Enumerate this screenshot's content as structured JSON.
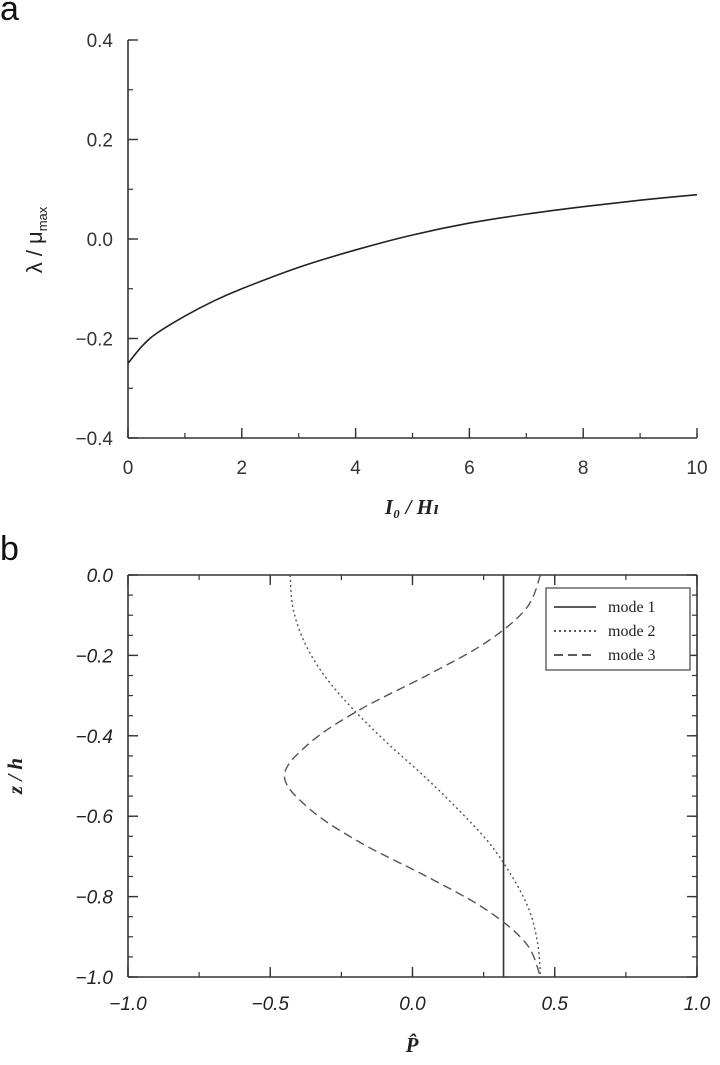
{
  "chart_data": [
    {
      "type": "line",
      "panel_label": "a",
      "xlabel": "I₀ / Hₗ",
      "ylabel": "λ / μ",
      "ylabel_subscript": "max",
      "xlim": [
        0,
        10
      ],
      "ylim": [
        -0.4,
        0.4
      ],
      "x_ticks": [
        0,
        2,
        4,
        6,
        8,
        10
      ],
      "x_tick_labels": [
        "0",
        "2",
        "4",
        "6",
        "8",
        "10"
      ],
      "y_ticks": [
        -0.4,
        -0.2,
        0.0,
        0.2,
        0.4
      ],
      "y_tick_labels": [
        "−0.4",
        "−0.2",
        "0.0",
        "0.2",
        "0.4"
      ],
      "grid": false,
      "series": [
        {
          "color": "#222222",
          "dash": "solid",
          "x": [
            0,
            0.25,
            0.5,
            1,
            1.5,
            2,
            3,
            4,
            5,
            6,
            7,
            8,
            9,
            10
          ],
          "y": [
            -0.25,
            -0.215,
            -0.19,
            -0.155,
            -0.125,
            -0.1,
            -0.057,
            -0.022,
            0.008,
            0.032,
            0.05,
            0.065,
            0.078,
            0.089
          ]
        }
      ]
    },
    {
      "type": "line",
      "panel_label": "b",
      "xlabel": "P̂",
      "ylabel": "z / h",
      "xlim": [
        -1.0,
        1.0
      ],
      "ylim": [
        -1.0,
        0.0
      ],
      "x_ticks": [
        -1.0,
        -0.5,
        0.0,
        0.5,
        1.0
      ],
      "x_tick_labels": [
        "−1.0",
        "−0.5",
        "0.0",
        "0.5",
        "1.0"
      ],
      "y_ticks": [
        0.0,
        -0.2,
        -0.4,
        -0.6,
        -0.8,
        -1.0
      ],
      "y_tick_labels": [
        "0.0",
        "−0.2",
        "−0.4",
        "−0.6",
        "−0.8",
        "−1.0"
      ],
      "grid": false,
      "legend_position": "top-right",
      "series": [
        {
          "name": "mode 1",
          "color": "#333333",
          "dash": "solid",
          "x": [
            0.32,
            0.32
          ],
          "y": [
            0.0,
            -1.0
          ]
        },
        {
          "name": "mode 2",
          "color": "#555555",
          "dash": "dotted",
          "x": [
            -0.43,
            -0.42,
            -0.38,
            -0.31,
            -0.21,
            -0.09,
            0.04,
            0.16,
            0.27,
            0.35,
            0.41,
            0.44,
            0.45
          ],
          "y": [
            0.0,
            -0.083,
            -0.167,
            -0.25,
            -0.333,
            -0.417,
            -0.5,
            -0.583,
            -0.667,
            -0.75,
            -0.833,
            -0.917,
            -1.0
          ]
        },
        {
          "name": "mode 3",
          "color": "#555555",
          "dash": "dashed",
          "x": [
            0.45,
            0.4,
            0.26,
            0.05,
            -0.18,
            -0.36,
            -0.45,
            -0.36,
            -0.18,
            0.05,
            0.26,
            0.4,
            0.45
          ],
          "y": [
            0.0,
            -0.083,
            -0.167,
            -0.25,
            -0.333,
            -0.417,
            -0.5,
            -0.583,
            -0.667,
            -0.75,
            -0.833,
            -0.917,
            -1.0
          ]
        }
      ]
    }
  ]
}
